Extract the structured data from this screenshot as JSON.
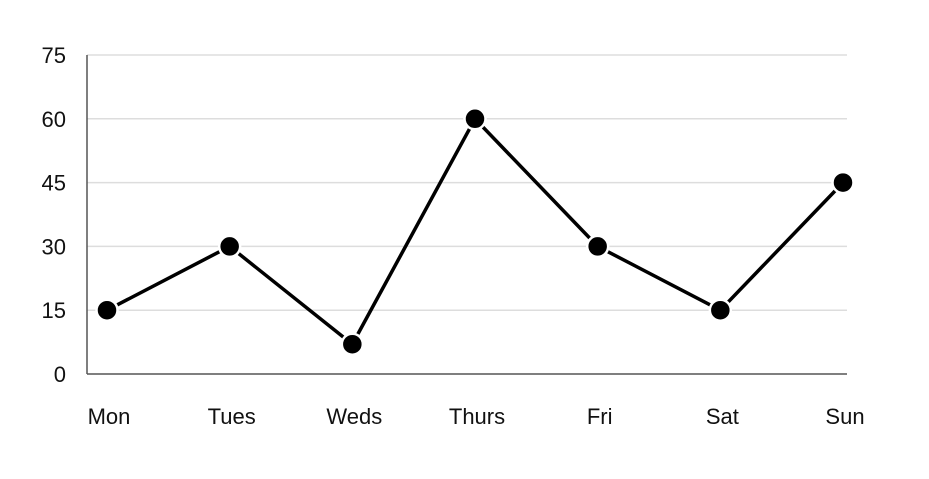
{
  "chart_data": {
    "type": "line",
    "categories": [
      "Mon",
      "Tues",
      "Weds",
      "Thurs",
      "Fri",
      "Sat",
      "Sun"
    ],
    "series": [
      {
        "values": [
          15,
          30,
          7,
          60,
          30,
          15,
          45
        ]
      }
    ],
    "y_ticks": [
      "0",
      "15",
      "30",
      "45",
      "60",
      "75"
    ],
    "ylim": [
      0,
      75
    ],
    "grid": true,
    "legend": "none",
    "colors": {
      "line": "#000000",
      "marker_fill": "#000000",
      "marker_stroke": "#ffffff",
      "grid": "#dddddd",
      "axis": "#555555"
    }
  }
}
